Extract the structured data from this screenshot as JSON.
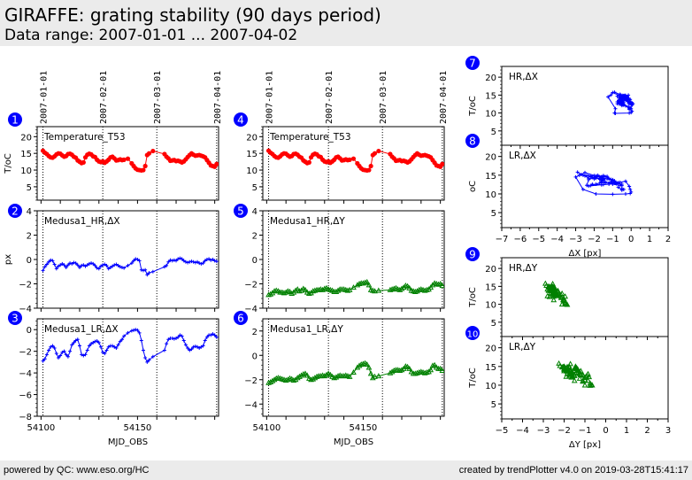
{
  "header": {
    "title": "GIRAFFE: grating stability (90 days period)",
    "subtitle": "Data range: 2007-01-01 ... 2007-04-02"
  },
  "footer": {
    "left": "powered by QC: www.eso.org/HC",
    "right": "created by trendPlotter v4.0 on 2019-03-28T15:41:17"
  },
  "colors": {
    "temperature": "#ff0000",
    "delta_x": "#0000ff",
    "delta_y": "#008000",
    "badge": "#0000ff"
  },
  "chart_data": [
    {
      "id": 1,
      "type": "line",
      "label": "Temperature_T53",
      "ylabel": "T/oC",
      "xlabel": "",
      "xlim": [
        54098,
        54192
      ],
      "ylim": [
        1,
        23
      ],
      "yticks": [
        5,
        10,
        15,
        20
      ],
      "top_date_ticks": [
        {
          "x": 54101,
          "label": "2007-01-01"
        },
        {
          "x": 54132,
          "label": "2007-02-01"
        },
        {
          "x": 54160,
          "label": "2007-03-01"
        },
        {
          "x": 54191,
          "label": "2007-04-01"
        }
      ],
      "vlines": [
        54101,
        54132,
        54160,
        54191
      ],
      "marker": "circle",
      "color": "#ff0000",
      "x": [
        54101,
        54102,
        54103,
        54104,
        54105,
        54106,
        54107,
        54108,
        54109,
        54110,
        54111,
        54112,
        54113,
        54114,
        54115,
        54116,
        54117,
        54118,
        54119,
        54120,
        54121,
        54122,
        54123,
        54124,
        54125,
        54126,
        54127,
        54128,
        54129,
        54130,
        54131,
        54132,
        54133,
        54134,
        54135,
        54136,
        54137,
        54138,
        54139,
        54140,
        54141,
        54142,
        54143,
        54145,
        54147,
        54148,
        54149,
        54150,
        54151,
        54152,
        54153,
        54154,
        54155,
        54156,
        54158,
        54164,
        54165,
        54166,
        54167,
        54168,
        54169,
        54170,
        54171,
        54172,
        54173,
        54174,
        54175,
        54176,
        54177,
        54178,
        54179,
        54180,
        54181,
        54182,
        54183,
        54184,
        54185,
        54186,
        54187,
        54188,
        54189,
        54190,
        54191
      ],
      "y": [
        15.8,
        15.2,
        14.8,
        14.2,
        13.8,
        13.7,
        14.1,
        14.7,
        15.0,
        14.9,
        14.4,
        14.0,
        14.2,
        14.8,
        14.9,
        14.6,
        14.0,
        13.7,
        12.9,
        12.5,
        12.1,
        12.3,
        13.8,
        14.6,
        14.9,
        14.7,
        14.1,
        13.9,
        13.1,
        12.6,
        12.4,
        12.6,
        12.2,
        12.6,
        13.1,
        13.8,
        14.0,
        13.5,
        12.9,
        13.0,
        13.2,
        13.0,
        13.1,
        13.4,
        12.0,
        11.2,
        10.5,
        10.1,
        10.0,
        9.9,
        10.0,
        11.2,
        14.5,
        15.0,
        15.7,
        14.8,
        14.0,
        13.5,
        12.8,
        12.9,
        13.0,
        12.7,
        12.8,
        12.6,
        12.3,
        12.6,
        13.2,
        13.9,
        14.5,
        15.0,
        14.6,
        14.3,
        14.4,
        14.5,
        14.3,
        14.1,
        13.8,
        13.0,
        12.2,
        11.4,
        11.2,
        11.0,
        11.8
      ]
    },
    {
      "id": 2,
      "type": "line",
      "label": "Medusa1_HR,ΔX",
      "ylabel": "px",
      "xlabel": "",
      "xlim": [
        54098,
        54192
      ],
      "ylim": [
        -4,
        4
      ],
      "yticks": [
        -4,
        -2,
        0,
        2,
        4
      ],
      "vlines": [
        54101,
        54132,
        54160,
        54191
      ],
      "marker": "plus",
      "color": "#0000ff",
      "x": [
        54101,
        54102,
        54103,
        54104,
        54105,
        54106,
        54107,
        54108,
        54109,
        54110,
        54111,
        54112,
        54113,
        54114,
        54115,
        54116,
        54117,
        54118,
        54119,
        54120,
        54121,
        54122,
        54123,
        54124,
        54125,
        54126,
        54127,
        54128,
        54129,
        54130,
        54131,
        54132,
        54133,
        54134,
        54135,
        54136,
        54137,
        54138,
        54139,
        54140,
        54141,
        54142,
        54143,
        54145,
        54147,
        54148,
        54149,
        54150,
        54151,
        54152,
        54153,
        54154,
        54155,
        54156,
        54158,
        54164,
        54165,
        54166,
        54167,
        54168,
        54169,
        54170,
        54171,
        54172,
        54173,
        54174,
        54175,
        54176,
        54177,
        54178,
        54179,
        54180,
        54181,
        54182,
        54183,
        54184,
        54185,
        54186,
        54187,
        54188,
        54189,
        54190,
        54191
      ],
      "y": [
        -0.9,
        -0.6,
        -0.4,
        -0.2,
        -0.05,
        -0.1,
        -0.4,
        -0.75,
        -0.55,
        -0.45,
        -0.35,
        -0.45,
        -0.65,
        -0.45,
        -0.3,
        -0.35,
        -0.25,
        -0.3,
        -0.45,
        -0.65,
        -0.5,
        -0.45,
        -0.55,
        -0.45,
        -0.35,
        -0.3,
        -0.35,
        -0.5,
        -0.7,
        -0.75,
        -0.55,
        -0.45,
        -0.4,
        -0.5,
        -0.75,
        -0.65,
        -0.55,
        -0.45,
        -0.4,
        -0.5,
        -0.6,
        -0.65,
        -0.7,
        -0.5,
        -0.3,
        -0.1,
        0.05,
        0.0,
        -0.1,
        -0.85,
        -0.9,
        -0.85,
        -1.25,
        -1.1,
        -1.0,
        -0.6,
        -0.5,
        -0.2,
        -0.05,
        -0.1,
        -0.05,
        -0.1,
        0.05,
        0.1,
        0.05,
        -0.1,
        -0.2,
        -0.25,
        -0.2,
        -0.15,
        -0.2,
        -0.25,
        -0.2,
        -0.3,
        -0.35,
        -0.3,
        -0.1,
        0.0,
        0.05,
        -0.05,
        0.0,
        -0.1,
        -0.15
      ]
    },
    {
      "id": 3,
      "type": "line",
      "label": "Medusa1_LR,ΔX",
      "ylabel": "",
      "xlabel": "MJD_OBS",
      "xlim": [
        54098,
        54192
      ],
      "ylim": [
        -8,
        1
      ],
      "yticks": [
        -8,
        -6,
        -4,
        -2,
        0
      ],
      "xticks": [
        54100,
        54150
      ],
      "vlines": [
        54101,
        54132,
        54160,
        54191
      ],
      "marker": "plus",
      "color": "#0000ff",
      "x": [
        54101,
        54102,
        54103,
        54104,
        54105,
        54106,
        54107,
        54108,
        54109,
        54110,
        54111,
        54112,
        54113,
        54114,
        54115,
        54116,
        54117,
        54118,
        54119,
        54120,
        54121,
        54122,
        54123,
        54124,
        54125,
        54126,
        54127,
        54128,
        54129,
        54130,
        54131,
        54132,
        54133,
        54134,
        54135,
        54136,
        54137,
        54138,
        54139,
        54140,
        54141,
        54142,
        54143,
        54145,
        54147,
        54148,
        54149,
        54150,
        54151,
        54152,
        54153,
        54154,
        54155,
        54156,
        54158,
        54164,
        54165,
        54166,
        54167,
        54168,
        54169,
        54170,
        54171,
        54172,
        54173,
        54174,
        54175,
        54176,
        54177,
        54178,
        54179,
        54180,
        54181,
        54182,
        54183,
        54184,
        54185,
        54186,
        54187,
        54188,
        54189,
        54190,
        54191
      ],
      "y": [
        -2.9,
        -2.7,
        -2.3,
        -1.9,
        -1.6,
        -1.5,
        -1.7,
        -2.2,
        -2.6,
        -2.4,
        -2.1,
        -2.0,
        -2.3,
        -2.5,
        -2.0,
        -1.4,
        -1.2,
        -1.0,
        -0.9,
        -1.5,
        -2.3,
        -2.4,
        -2.3,
        -1.9,
        -1.5,
        -1.3,
        -1.2,
        -1.1,
        -1.05,
        -1.2,
        -1.6,
        -2.1,
        -2.2,
        -1.9,
        -1.6,
        -1.5,
        -1.5,
        -1.6,
        -1.7,
        -1.4,
        -1.1,
        -0.9,
        -0.6,
        -0.3,
        -0.1,
        -0.05,
        0.0,
        -0.05,
        -0.3,
        -1.0,
        -1.9,
        -2.6,
        -3.0,
        -2.8,
        -2.5,
        -1.9,
        -1.3,
        -0.9,
        -0.8,
        -0.8,
        -0.85,
        -0.8,
        -0.7,
        -0.5,
        -0.6,
        -1.0,
        -1.4,
        -1.7,
        -1.9,
        -1.8,
        -1.6,
        -1.55,
        -1.6,
        -1.7,
        -1.6,
        -1.5,
        -1.0,
        -0.7,
        -0.5,
        -0.5,
        -0.4,
        -0.5,
        -0.7
      ]
    },
    {
      "id": 4,
      "type": "line",
      "label": "Temperature_T53",
      "ylabel": "",
      "xlabel": "",
      "xlim": [
        54098,
        54192
      ],
      "ylim": [
        1,
        23
      ],
      "yticks": [
        5,
        10,
        15,
        20
      ],
      "top_date_ticks": [
        {
          "x": 54101,
          "label": "2007-01-01"
        },
        {
          "x": 54132,
          "label": "2007-02-01"
        },
        {
          "x": 54160,
          "label": "2007-03-01"
        },
        {
          "x": 54191,
          "label": "2007-04-01"
        }
      ],
      "vlines": [
        54101,
        54132,
        54160,
        54191
      ],
      "marker": "circle",
      "color": "#ff0000",
      "same_as": 1
    },
    {
      "id": 5,
      "type": "line",
      "label": "Medusa1_HR,ΔY",
      "ylabel": "",
      "xlabel": "",
      "xlim": [
        54098,
        54192
      ],
      "ylim": [
        -4,
        4
      ],
      "yticks": [
        -4,
        -2,
        0,
        2,
        4
      ],
      "vlines": [
        54101,
        54132,
        54160,
        54191
      ],
      "marker": "triangle",
      "color": "#008000",
      "x": [
        54101,
        54102,
        54103,
        54104,
        54105,
        54106,
        54107,
        54108,
        54109,
        54110,
        54111,
        54112,
        54113,
        54114,
        54115,
        54116,
        54117,
        54118,
        54119,
        54120,
        54121,
        54122,
        54123,
        54124,
        54125,
        54126,
        54127,
        54128,
        54129,
        54130,
        54131,
        54132,
        54133,
        54134,
        54135,
        54136,
        54137,
        54138,
        54139,
        54140,
        54141,
        54142,
        54143,
        54145,
        54147,
        54148,
        54149,
        54150,
        54151,
        54152,
        54153,
        54154,
        54155,
        54156,
        54158,
        54164,
        54165,
        54166,
        54167,
        54168,
        54169,
        54170,
        54171,
        54172,
        54173,
        54174,
        54175,
        54176,
        54177,
        54178,
        54179,
        54180,
        54181,
        54182,
        54183,
        54184,
        54185,
        54186,
        54187,
        54188,
        54189,
        54190,
        54191
      ],
      "y": [
        -2.9,
        -2.85,
        -2.75,
        -2.6,
        -2.55,
        -2.6,
        -2.7,
        -2.7,
        -2.75,
        -2.7,
        -2.6,
        -2.65,
        -2.8,
        -2.7,
        -2.55,
        -2.45,
        -2.6,
        -2.55,
        -2.4,
        -2.5,
        -2.7,
        -2.8,
        -2.75,
        -2.6,
        -2.55,
        -2.5,
        -2.5,
        -2.45,
        -2.5,
        -2.4,
        -2.35,
        -2.45,
        -2.5,
        -2.55,
        -2.65,
        -2.65,
        -2.55,
        -2.45,
        -2.45,
        -2.45,
        -2.5,
        -2.55,
        -2.5,
        -2.3,
        -2.1,
        -2.0,
        -1.95,
        -1.95,
        -1.9,
        -1.85,
        -2.1,
        -2.5,
        -2.55,
        -2.6,
        -2.55,
        -2.5,
        -2.45,
        -2.4,
        -2.35,
        -2.45,
        -2.5,
        -2.4,
        -2.3,
        -2.15,
        -2.2,
        -2.35,
        -2.55,
        -2.6,
        -2.65,
        -2.6,
        -2.5,
        -2.45,
        -2.5,
        -2.55,
        -2.5,
        -2.45,
        -2.3,
        -2.1,
        -1.95,
        -2.0,
        -2.05,
        -2.0,
        -2.15
      ]
    },
    {
      "id": 6,
      "type": "line",
      "label": "Medusa1_LR,ΔY",
      "ylabel": "",
      "xlabel": "MJD_OBS",
      "xlim": [
        54098,
        54192
      ],
      "ylim": [
        -5,
        3
      ],
      "yticks": [
        -4,
        -2,
        0,
        2
      ],
      "xticks": [
        54100,
        54150
      ],
      "vlines": [
        54101,
        54132,
        54160,
        54191
      ],
      "marker": "triangle",
      "color": "#008000",
      "x": [
        54101,
        54102,
        54103,
        54104,
        54105,
        54106,
        54107,
        54108,
        54109,
        54110,
        54111,
        54112,
        54113,
        54114,
        54115,
        54116,
        54117,
        54118,
        54119,
        54120,
        54121,
        54122,
        54123,
        54124,
        54125,
        54126,
        54127,
        54128,
        54129,
        54130,
        54131,
        54132,
        54133,
        54134,
        54135,
        54136,
        54137,
        54138,
        54139,
        54140,
        54141,
        54142,
        54143,
        54145,
        54147,
        54148,
        54149,
        54150,
        54151,
        54152,
        54153,
        54154,
        54155,
        54156,
        54158,
        54164,
        54165,
        54166,
        54167,
        54168,
        54169,
        54170,
        54171,
        54172,
        54173,
        54174,
        54175,
        54176,
        54177,
        54178,
        54179,
        54180,
        54181,
        54182,
        54183,
        54184,
        54185,
        54186,
        54187,
        54188,
        54189,
        54190,
        54191
      ],
      "y": [
        -2.25,
        -2.2,
        -2.1,
        -2.0,
        -1.9,
        -1.85,
        -1.9,
        -1.95,
        -2.0,
        -2.05,
        -2.0,
        -1.9,
        -1.95,
        -2.05,
        -2.0,
        -1.85,
        -1.75,
        -1.65,
        -1.55,
        -1.5,
        -1.65,
        -1.9,
        -2.0,
        -1.95,
        -1.85,
        -1.75,
        -1.7,
        -1.7,
        -1.65,
        -1.7,
        -1.6,
        -1.5,
        -1.6,
        -1.75,
        -1.85,
        -1.8,
        -1.7,
        -1.65,
        -1.7,
        -1.7,
        -1.65,
        -1.7,
        -1.75,
        -1.4,
        -1.0,
        -0.85,
        -0.75,
        -0.7,
        -0.65,
        -0.75,
        -1.0,
        -1.5,
        -1.85,
        -1.75,
        -1.7,
        -1.45,
        -1.35,
        -1.25,
        -1.2,
        -1.2,
        -1.25,
        -1.2,
        -1.1,
        -0.9,
        -0.95,
        -1.1,
        -1.35,
        -1.5,
        -1.5,
        -1.45,
        -1.4,
        -1.35,
        -1.4,
        -1.45,
        -1.4,
        -1.35,
        -1.2,
        -0.85,
        -0.8,
        -1.0,
        -1.1,
        -1.1,
        -1.25
      ]
    },
    {
      "id": 7,
      "type": "scatter",
      "label": "HR,ΔX",
      "ylabel": "T/oC",
      "xlabel": "",
      "xlim": [
        -7,
        2
      ],
      "ylim": [
        1,
        23
      ],
      "yticks": [
        5,
        10,
        15,
        20
      ],
      "marker": "plus",
      "color": "#0000ff",
      "connected": true,
      "x_from": 2,
      "y_from": 1
    },
    {
      "id": 8,
      "type": "scatter",
      "label": "LR,ΔX",
      "ylabel": "oC",
      "xlabel": "ΔX [px]",
      "xlim": [
        -7,
        2
      ],
      "ylim": [
        1,
        23
      ],
      "yticks": [
        5,
        10,
        15,
        20
      ],
      "xticks": [
        -7,
        -6,
        -5,
        -4,
        -3,
        -2,
        -1,
        0,
        1,
        2
      ],
      "xtick_labels": [
        "−7",
        "−6",
        "−5",
        "−4",
        "−3",
        "−2",
        "−1",
        "0",
        "1",
        "2"
      ],
      "marker": "plus",
      "color": "#0000ff",
      "connected": true,
      "x_from": 3,
      "y_from": 1
    },
    {
      "id": 9,
      "type": "scatter",
      "label": "HR,ΔY",
      "ylabel": "T/oC",
      "xlabel": "",
      "xlim": [
        -5,
        3
      ],
      "ylim": [
        1,
        23
      ],
      "yticks": [
        5,
        10,
        15,
        20
      ],
      "marker": "triangle",
      "color": "#008000",
      "connected": false,
      "x_from": 5,
      "y_from": 1
    },
    {
      "id": 10,
      "type": "scatter",
      "label": "LR,ΔY",
      "ylabel": "T/oC",
      "xlabel": "ΔY [px]",
      "xlim": [
        -5,
        3
      ],
      "ylim": [
        1,
        23
      ],
      "yticks": [
        5,
        10,
        15,
        20
      ],
      "xticks": [
        -5,
        -4,
        -3,
        -2,
        -1,
        0,
        1,
        2,
        3
      ],
      "xtick_labels": [
        "−5",
        "−4",
        "−3",
        "−2",
        "−1",
        "0",
        "1",
        "2",
        "3"
      ],
      "marker": "triangle",
      "color": "#008000",
      "connected": false,
      "x_from": 6,
      "y_from": 1
    }
  ]
}
